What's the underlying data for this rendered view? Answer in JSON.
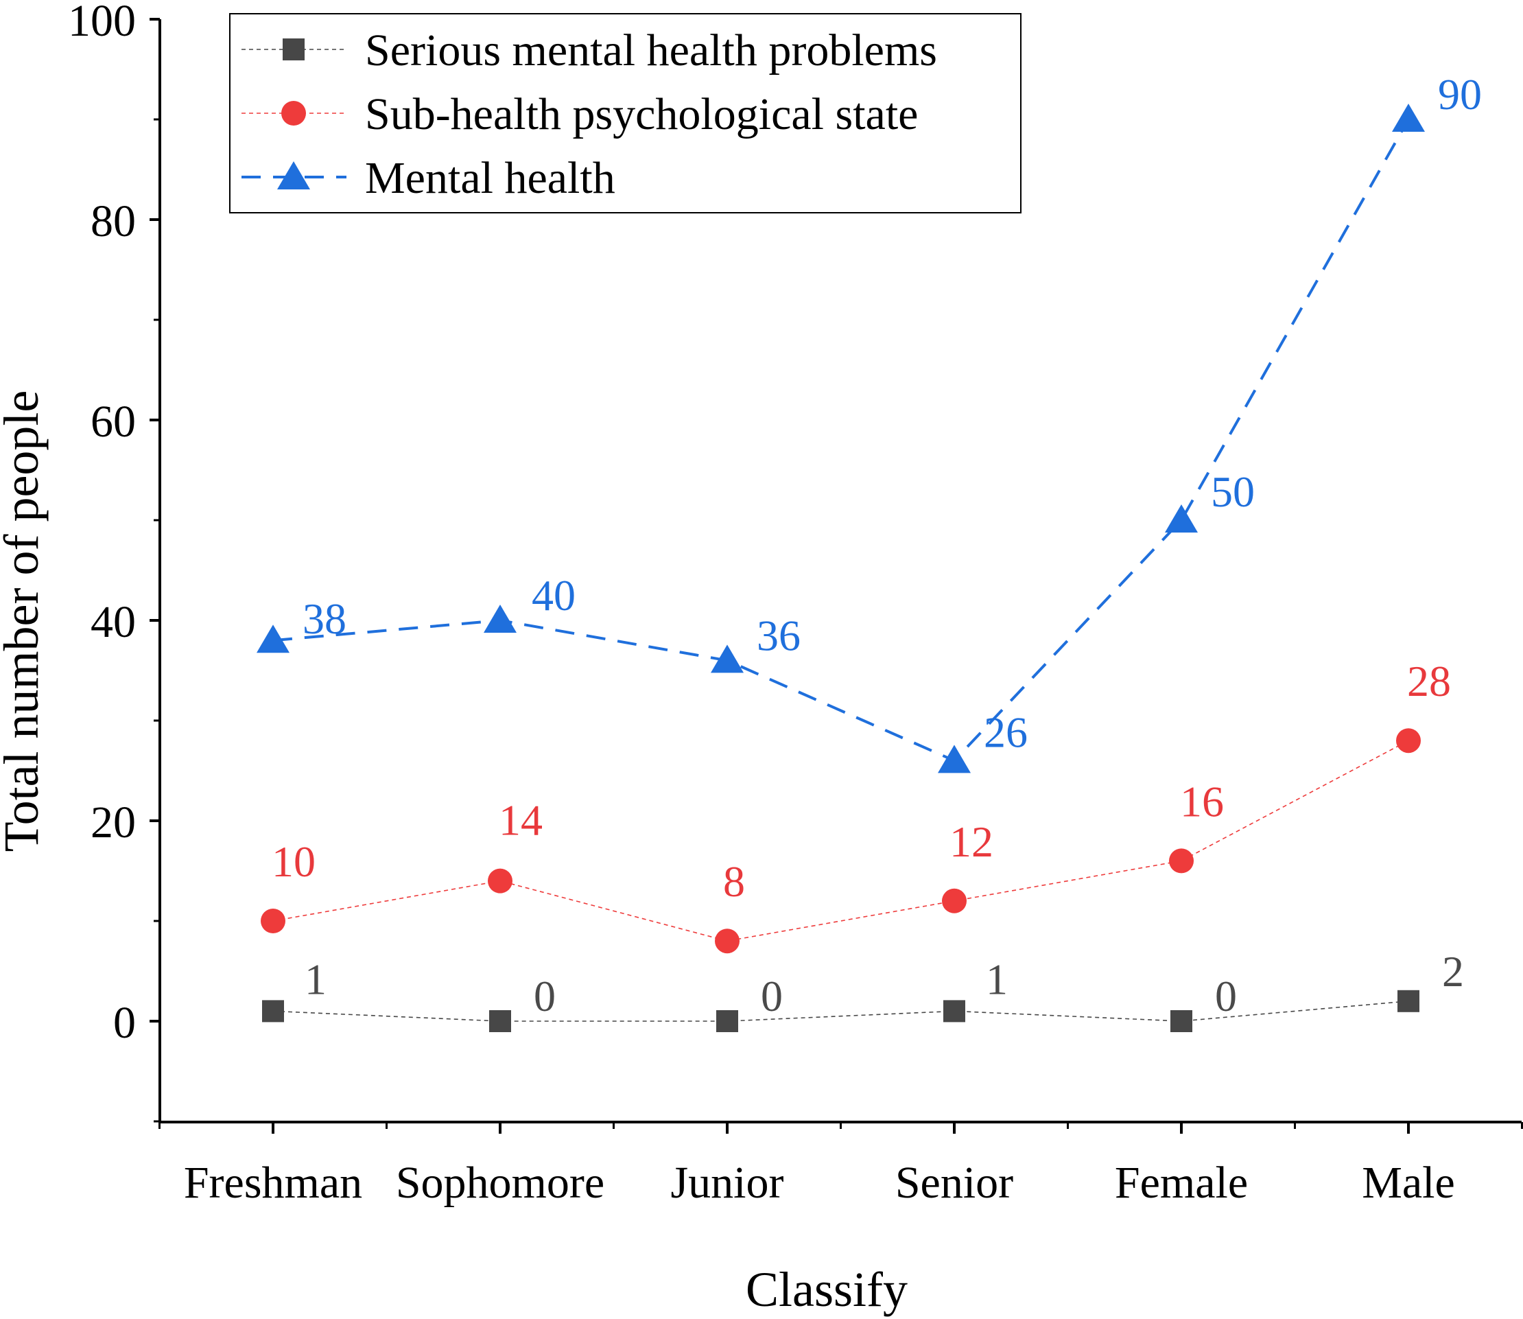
{
  "chart_data": {
    "type": "line",
    "title": "",
    "xlabel": "Classify",
    "ylabel": "Total number of people",
    "categories": [
      "Freshman",
      "Sophomore",
      "Junior",
      "Senior",
      "Female",
      "Male"
    ],
    "ylim": [
      -10,
      100
    ],
    "yticks": [
      0,
      20,
      40,
      60,
      80,
      100
    ],
    "grid": false,
    "legend_position": "top-left",
    "series": [
      {
        "name": "Serious mental health problems",
        "values": [
          1,
          0,
          0,
          1,
          0,
          2
        ],
        "color": "#474747",
        "label_color": "#4a4a4a",
        "marker": "square",
        "line_style": "dotted"
      },
      {
        "name": "Sub-health psychological state",
        "values": [
          10,
          14,
          8,
          12,
          16,
          28
        ],
        "color": "#ee3b3b",
        "label_color": "#e8393c",
        "marker": "circle",
        "line_style": "dotted"
      },
      {
        "name": "Mental health",
        "values": [
          38,
          40,
          36,
          26,
          50,
          90
        ],
        "color": "#1f6fdc",
        "label_color": "#1f6fdc",
        "marker": "triangle",
        "line_style": "dashed"
      }
    ]
  }
}
